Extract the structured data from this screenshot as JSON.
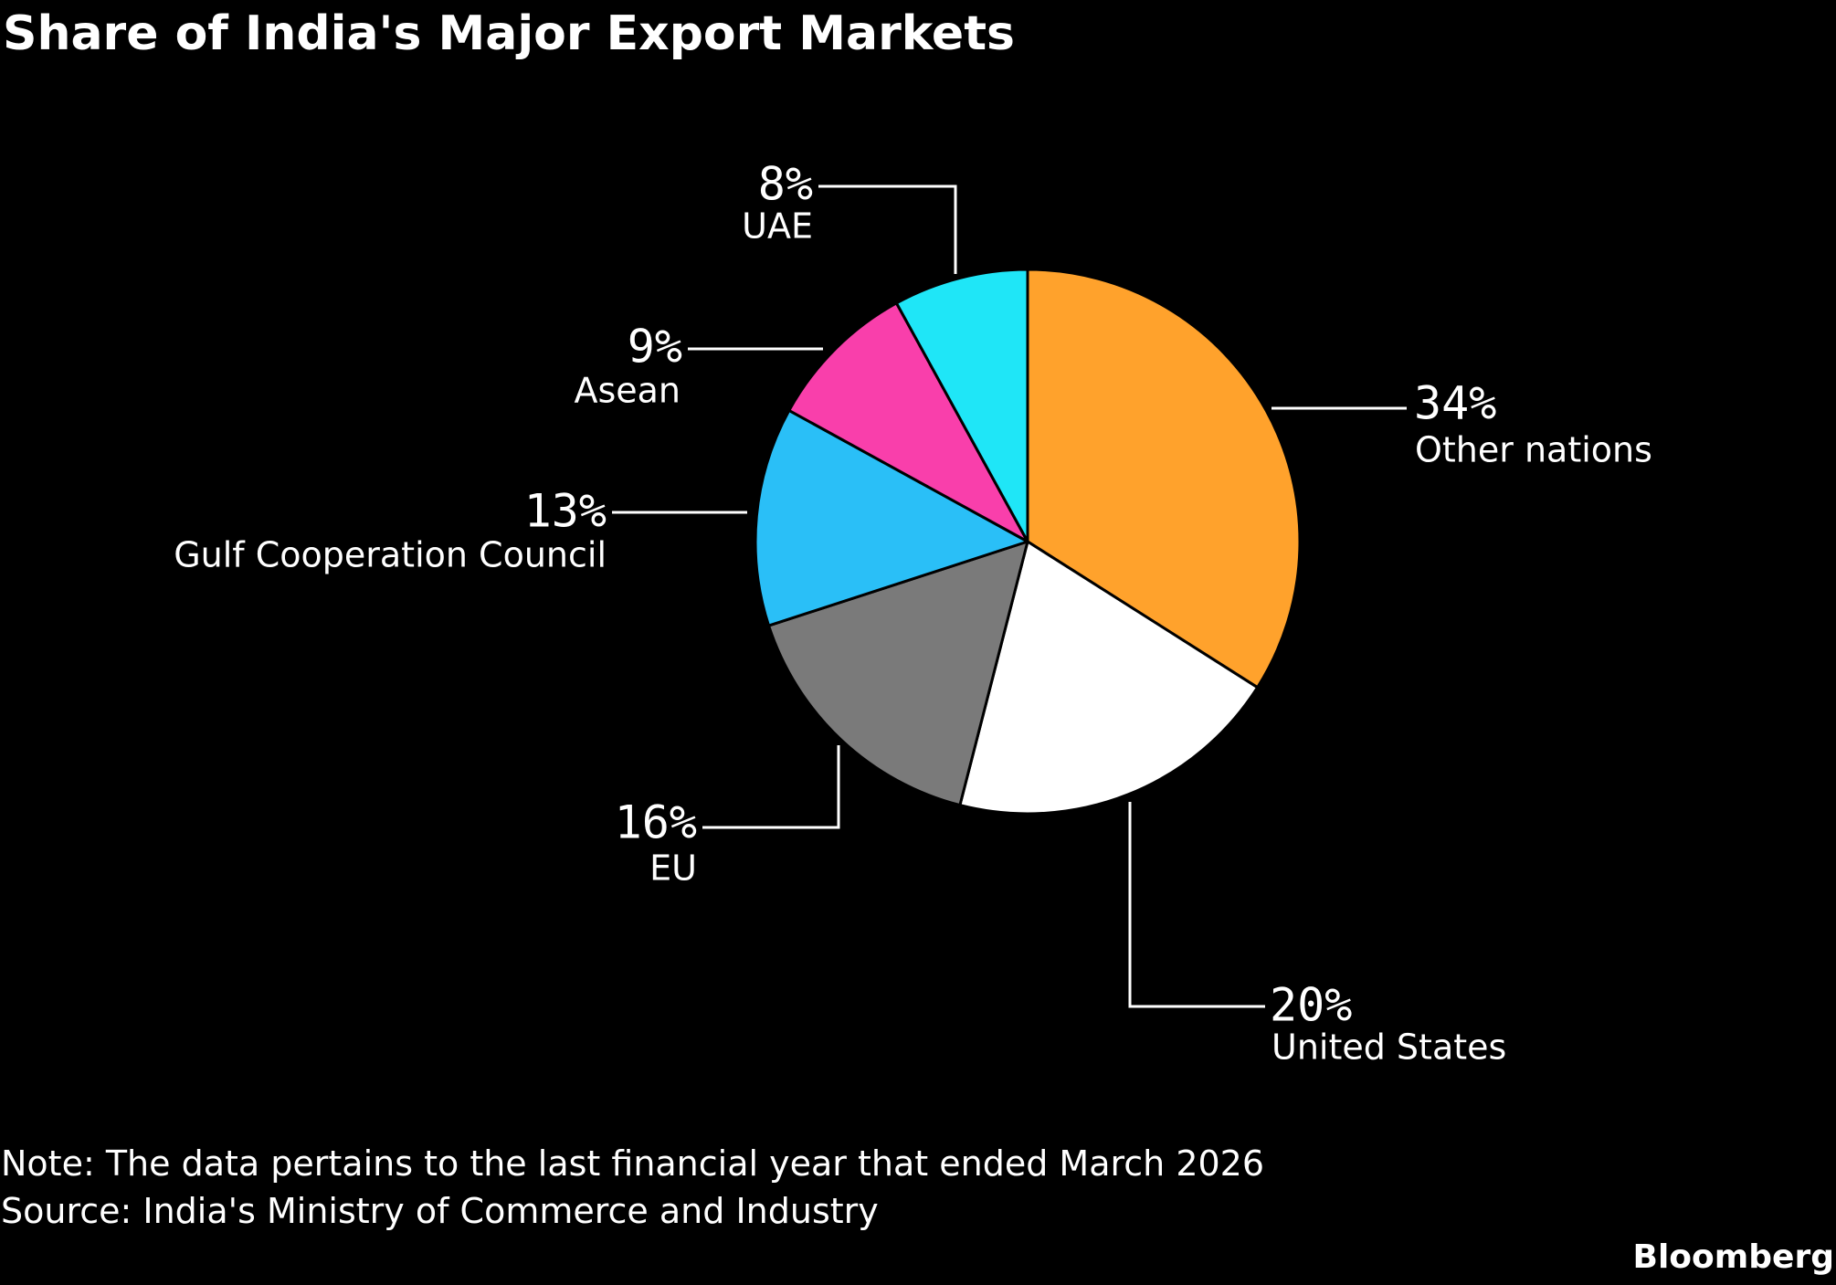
{
  "title": "Share of India's Major Export Markets",
  "note": "Note: The data pertains to the last financial year that ended March 2026",
  "source": "Source: India's Ministry of Commerce and Industry",
  "brand": "Bloomberg",
  "chart_data": {
    "type": "pie",
    "title": "Share of India's Major Export Markets",
    "start": "12 o'clock",
    "direction": "clockwise",
    "slices": [
      {
        "name": "Other nations",
        "value": 34,
        "label": "34%",
        "color": "#ffa22c"
      },
      {
        "name": "United States",
        "value": 20,
        "label": "20%",
        "color": "#ffffff"
      },
      {
        "name": "EU",
        "value": 16,
        "label": "16%",
        "color": "#7a7a7a"
      },
      {
        "name": "Gulf Cooperation Council",
        "value": 13,
        "label": "13%",
        "color": "#2abff7"
      },
      {
        "name": "Asean",
        "value": 9,
        "label": "9%",
        "color": "#f93fab"
      },
      {
        "name": "UAE",
        "value": 8,
        "label": "8%",
        "color": "#1fe6f7"
      }
    ],
    "slice_border_color": "#000000",
    "leader_line_color": "#ffffff"
  }
}
